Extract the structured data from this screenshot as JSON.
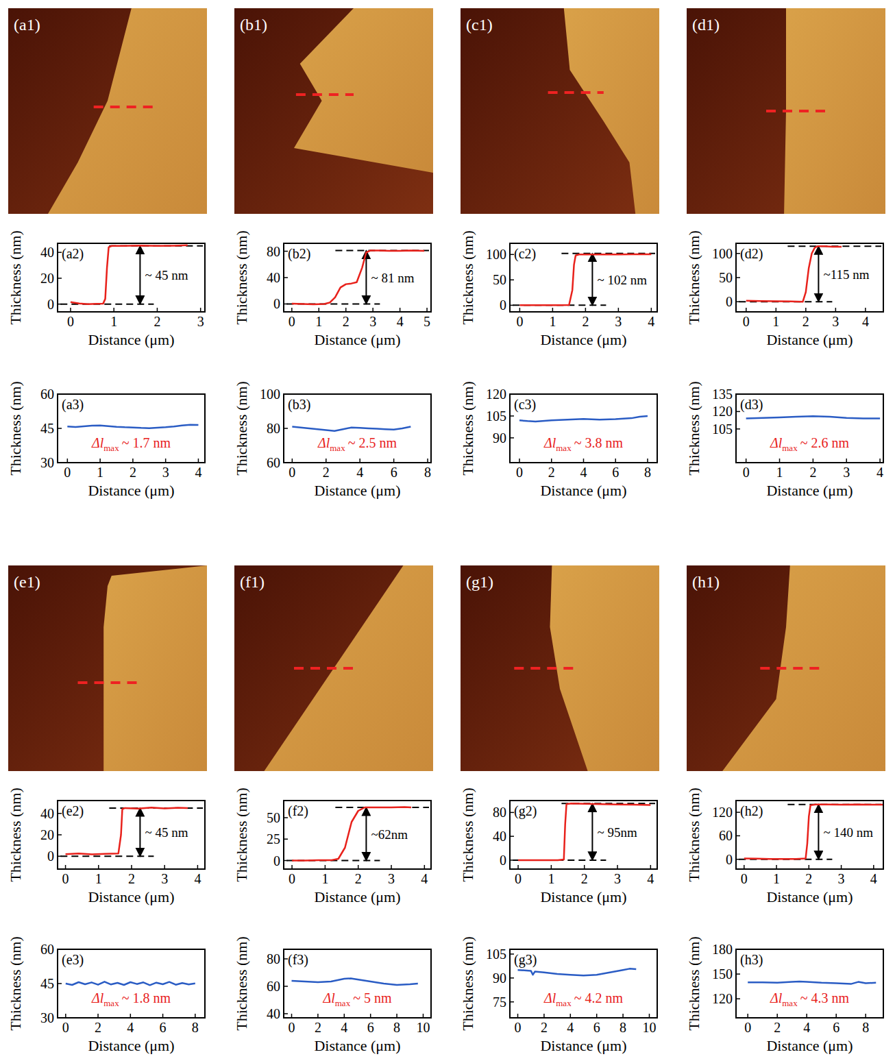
{
  "images": [
    {
      "label": "(a1)"
    },
    {
      "label": "(b1)"
    },
    {
      "label": "(c1)"
    },
    {
      "label": "(d1)"
    },
    {
      "label": "(e1)"
    },
    {
      "label": "(f1)"
    },
    {
      "label": "(g1)"
    },
    {
      "label": "(h1)"
    }
  ],
  "chart_data": [
    {
      "type": "line",
      "title": "(a2)",
      "x_label": "Distance (μm)",
      "y_label": "Thickness (nm)",
      "xlim": [
        -0.3,
        3.1
      ],
      "ylim": [
        -6,
        47
      ],
      "xticks": [
        0,
        1,
        2,
        3
      ],
      "yticks": [
        0,
        20,
        40
      ],
      "x": [
        0,
        0.2,
        0.4,
        0.6,
        0.75,
        0.8,
        0.84,
        0.88,
        0.95,
        1.2,
        1.6,
        2.0,
        2.4,
        2.7
      ],
      "series": [
        {
          "color": "#e8211b",
          "values": [
            1.5,
            0.5,
            0,
            0.2,
            0.3,
            4,
            28,
            44,
            45,
            45,
            45.3,
            45,
            45.2,
            45.5
          ]
        }
      ],
      "step_levels": [
        0,
        45
      ],
      "annotation": "~ 45 nm"
    },
    {
      "type": "line",
      "title": "(a3)",
      "x_label": "Distance (μm)",
      "y_label": "Thickness (nm)",
      "xlim": [
        -0.3,
        4.2
      ],
      "ylim": [
        30,
        60
      ],
      "xticks": [
        0,
        1,
        2,
        3,
        4
      ],
      "yticks": [
        30,
        45,
        60
      ],
      "x": [
        0,
        0.25,
        0.5,
        0.75,
        1,
        1.25,
        1.5,
        1.75,
        2,
        2.25,
        2.5,
        2.75,
        3,
        3.25,
        3.5,
        3.75,
        4
      ],
      "series": [
        {
          "color": "#2a5cc4",
          "values": [
            45.8,
            45.6,
            45.9,
            46.2,
            46.3,
            46,
            45.7,
            45.5,
            45.4,
            45.2,
            45.1,
            45.3,
            45.5,
            45.8,
            46.3,
            46.6,
            46.5
          ]
        }
      ],
      "annotation": {
        "text": "Δl",
        "subscript": "max",
        "suffix": "~ 1.7 nm"
      }
    },
    {
      "type": "line",
      "title": "(b2)",
      "x_label": "Distance (μm)",
      "y_label": "Thickness (nm)",
      "xlim": [
        -0.3,
        5.15
      ],
      "ylim": [
        -12,
        92
      ],
      "xticks": [
        0,
        1,
        2,
        3,
        4,
        5
      ],
      "yticks": [
        0,
        40,
        80
      ],
      "x": [
        0,
        0.4,
        0.8,
        1.2,
        1.4,
        1.6,
        1.8,
        2.0,
        2.2,
        2.4,
        2.6,
        2.75,
        2.9,
        3.2,
        3.6,
        4.0,
        4.4,
        4.9
      ],
      "series": [
        {
          "color": "#e8211b",
          "values": [
            0.5,
            0,
            -0.5,
            0,
            2,
            10,
            25,
            30,
            31,
            33,
            55,
            78,
            81,
            81,
            80.5,
            80.5,
            81,
            80.5
          ]
        }
      ],
      "step_levels": [
        0,
        81
      ],
      "annotation": "~ 81 nm"
    },
    {
      "type": "line",
      "title": "(b3)",
      "x_label": "Distance (μm)",
      "y_label": "Thickness (nm)",
      "xlim": [
        -0.5,
        8.2
      ],
      "ylim": [
        60,
        100
      ],
      "xticks": [
        0,
        2,
        4,
        6,
        8
      ],
      "yticks": [
        60,
        80,
        100
      ],
      "x": [
        0,
        0.5,
        1,
        1.5,
        2,
        2.5,
        3,
        3.5,
        4,
        4.5,
        5,
        5.5,
        6,
        6.5,
        7
      ],
      "series": [
        {
          "color": "#2a5cc4",
          "values": [
            81,
            80.5,
            80,
            79.5,
            79,
            78.5,
            79.5,
            80.5,
            80.3,
            80,
            79.8,
            79.5,
            79.3,
            80,
            81
          ]
        }
      ],
      "annotation": {
        "text": "Δl",
        "subscript": "max",
        "suffix": "~ 2.5 nm"
      }
    },
    {
      "type": "line",
      "title": "(c2)",
      "x_label": "Distance (μm)",
      "y_label": "Thickness (nm)",
      "xlim": [
        -0.3,
        4.18
      ],
      "ylim": [
        -13,
        122
      ],
      "xticks": [
        0,
        1,
        2,
        3,
        4
      ],
      "yticks": [
        0,
        50,
        100
      ],
      "x": [
        0,
        0.4,
        0.8,
        1.2,
        1.5,
        1.6,
        1.65,
        1.7,
        1.8,
        2.2,
        2.6,
        3.0,
        3.4,
        3.8,
        4.0
      ],
      "series": [
        {
          "color": "#e8211b",
          "values": [
            0,
            0,
            0,
            0,
            0.5,
            30,
            80,
            98,
            100,
            100,
            100,
            100,
            100.5,
            100.5,
            100.5
          ]
        }
      ],
      "step_levels": [
        0,
        102
      ],
      "annotation": "~ 102 nm"
    },
    {
      "type": "line",
      "title": "(c3)",
      "x_label": "Distance (μm)",
      "y_label": "Thickness (nm)",
      "xlim": [
        -0.6,
        8.6
      ],
      "ylim": [
        73,
        120
      ],
      "xticks": [
        0,
        2,
        4,
        6,
        8
      ],
      "yticks": [
        90,
        105,
        120
      ],
      "x": [
        0,
        0.5,
        1,
        2,
        3,
        4,
        5,
        6,
        7,
        7.5,
        8
      ],
      "series": [
        {
          "color": "#2a5cc4",
          "values": [
            102,
            101.5,
            101.2,
            102,
            102.5,
            103,
            102.5,
            102.8,
            103.5,
            104.5,
            105
          ]
        }
      ],
      "annotation": {
        "text": "Δl",
        "subscript": "max",
        "suffix": "~ 3.8 nm"
      }
    },
    {
      "type": "line",
      "title": "(d2)",
      "x_label": "Distance (μm)",
      "y_label": "Thickness (nm)",
      "xlim": [
        -0.34,
        4.6
      ],
      "ylim": [
        -21,
        121
      ],
      "xticks": [
        0,
        1,
        2,
        3,
        4
      ],
      "yticks": [
        0,
        50,
        100
      ],
      "x": [
        0,
        0.5,
        1,
        1.5,
        1.9,
        2.0,
        2.1,
        2.2,
        2.3,
        2.4,
        2.6,
        2.9,
        3.2
      ],
      "series": [
        {
          "color": "#e8211b",
          "values": [
            2,
            1.5,
            1,
            0.5,
            0,
            20,
            70,
            100,
            112,
            115,
            115,
            114,
            114
          ]
        }
      ],
      "step_levels": [
        0,
        115
      ],
      "annotation": "~115 nm"
    },
    {
      "type": "line",
      "title": "(d3)",
      "x_label": "Distance (μm)",
      "y_label": "Thickness (nm)",
      "xlim": [
        -0.3,
        4.1
      ],
      "ylim": [
        76,
        135
      ],
      "xticks": [
        0,
        1,
        2,
        3,
        4
      ],
      "yticks": [
        105,
        120,
        135
      ],
      "x": [
        0,
        0.5,
        1,
        1.5,
        2,
        2.5,
        3,
        3.5,
        4
      ],
      "series": [
        {
          "color": "#2a5cc4",
          "values": [
            114,
            114.5,
            115,
            115.5,
            116,
            115.5,
            114.5,
            114,
            114
          ]
        }
      ],
      "annotation": {
        "text": "Δl",
        "subscript": "max",
        "suffix": "~ 2.6 nm"
      }
    },
    {
      "type": "line",
      "title": "(e2)",
      "x_label": "Distance (μm)",
      "y_label": "Thickness (nm)",
      "xlim": [
        -0.24,
        4.22
      ],
      "ylim": [
        -12,
        52
      ],
      "xticks": [
        0,
        1,
        2,
        3,
        4
      ],
      "yticks": [
        0,
        20,
        40
      ],
      "x": [
        0,
        0.4,
        0.8,
        1.2,
        1.6,
        1.68,
        1.72,
        1.8,
        2.2,
        2.6,
        3.0,
        3.4,
        3.7
      ],
      "series": [
        {
          "color": "#e8211b",
          "values": [
            2,
            2.5,
            1.8,
            2.2,
            2.5,
            20,
            44,
            45,
            44.5,
            45.5,
            44.6,
            45.3,
            45
          ]
        }
      ],
      "step_levels": [
        0,
        45
      ],
      "annotation": "~ 45 nm"
    },
    {
      "type": "line",
      "title": "(e3)",
      "x_label": "Distance (μm)",
      "y_label": "Thickness (nm)",
      "xlim": [
        -0.5,
        8.6
      ],
      "ylim": [
        30,
        60
      ],
      "xticks": [
        0,
        2,
        4,
        6,
        8
      ],
      "yticks": [
        30,
        45,
        60
      ],
      "x": [
        0,
        0.4,
        0.8,
        1.2,
        1.6,
        2.0,
        2.4,
        2.8,
        3.2,
        3.6,
        4.0,
        4.4,
        4.8,
        5.2,
        5.6,
        6.0,
        6.4,
        6.8,
        7.2,
        7.6,
        8.0
      ],
      "series": [
        {
          "color": "#2a5cc4",
          "values": [
            45,
            44.4,
            45.6,
            44.7,
            45.5,
            44.5,
            45.8,
            44.6,
            45.3,
            44.4,
            45.6,
            44.8,
            45.5,
            44.3,
            45.4,
            44.7,
            45.7,
            44.5,
            45.2,
            44.6,
            45.1
          ]
        }
      ],
      "annotation": {
        "text": "Δl",
        "subscript": "max",
        "suffix": "~ 1.8 nm"
      }
    },
    {
      "type": "line",
      "title": "(f2)",
      "x_label": "Distance (μm)",
      "y_label": "Thickness (nm)",
      "xlim": [
        -0.25,
        4.2
      ],
      "ylim": [
        -10,
        70
      ],
      "xticks": [
        0,
        1,
        2,
        3,
        4
      ],
      "yticks": [
        0,
        25,
        50
      ],
      "x": [
        0,
        0.4,
        0.8,
        1.2,
        1.4,
        1.6,
        1.8,
        2.0,
        2.2,
        2.6,
        3.0,
        3.4,
        3.6
      ],
      "series": [
        {
          "color": "#e8211b",
          "values": [
            0,
            0,
            0.5,
            0.5,
            2,
            15,
            45,
            58,
            62,
            62,
            62,
            62.5,
            62
          ]
        }
      ],
      "step_levels": [
        0,
        62
      ],
      "annotation": "~62nm"
    },
    {
      "type": "line",
      "title": "(f3)",
      "x_label": "Distance (μm)",
      "y_label": "Thickness (nm)",
      "xlim": [
        -0.6,
        10.6
      ],
      "ylim": [
        37,
        87
      ],
      "xticks": [
        0,
        2,
        4,
        6,
        8,
        10
      ],
      "yticks": [
        40,
        60,
        80
      ],
      "x": [
        0,
        1,
        2,
        3,
        4,
        4.5,
        5,
        6,
        7,
        8,
        9,
        9.6
      ],
      "series": [
        {
          "color": "#2a5cc4",
          "values": [
            64,
            63.5,
            63,
            63.5,
            65.5,
            65.8,
            65,
            63.5,
            62,
            61,
            61.5,
            62
          ]
        }
      ],
      "annotation": {
        "text": "Δl",
        "subscript": "max",
        "suffix": "~ 5 nm"
      }
    },
    {
      "type": "line",
      "title": "(g2)",
      "x_label": "Distance (μm)",
      "y_label": "Thickness (nm)",
      "xlim": [
        -0.25,
        4.2
      ],
      "ylim": [
        -15,
        100
      ],
      "xticks": [
        0,
        1,
        2,
        3,
        4
      ],
      "yticks": [
        0,
        40,
        80
      ],
      "x": [
        0,
        0.4,
        0.8,
        1.2,
        1.38,
        1.42,
        1.46,
        1.6,
        2.0,
        2.5,
        3.0,
        3.5,
        4.0
      ],
      "series": [
        {
          "color": "#e8211b",
          "values": [
            0,
            0,
            0,
            0,
            1,
            60,
            94,
            95,
            94.5,
            94,
            93.5,
            93,
            92.5
          ]
        }
      ],
      "step_levels": [
        0,
        95
      ],
      "annotation": "~ 95nm"
    },
    {
      "type": "line",
      "title": "(g3)",
      "x_label": "Distance (μm)",
      "y_label": "Thickness (nm)",
      "xlim": [
        -0.6,
        10.6
      ],
      "ylim": [
        65,
        108
      ],
      "xticks": [
        0,
        2,
        4,
        6,
        8,
        10
      ],
      "yticks": [
        75,
        90,
        105
      ],
      "x": [
        0,
        0.5,
        1,
        1.15,
        1.3,
        2,
        3,
        4,
        5,
        6,
        7,
        8,
        8.5,
        9
      ],
      "series": [
        {
          "color": "#2a5cc4",
          "values": [
            95,
            94.8,
            94.5,
            92,
            94,
            93.5,
            92.5,
            92,
            91.5,
            92,
            93.5,
            95,
            95.8,
            95.5
          ]
        }
      ],
      "annotation": {
        "text": "Δl",
        "subscript": "max",
        "suffix": "~ 4.2 nm"
      }
    },
    {
      "type": "line",
      "title": "(h2)",
      "x_label": "Distance (μm)",
      "y_label": "Thickness (nm)",
      "xlim": [
        -0.25,
        4.3
      ],
      "ylim": [
        -25,
        150
      ],
      "xticks": [
        0,
        1,
        2,
        3,
        4
      ],
      "yticks": [
        0,
        60,
        120
      ],
      "x": [
        0,
        0.4,
        0.8,
        1.2,
        1.6,
        1.9,
        1.95,
        2.0,
        2.05,
        2.2,
        2.6,
        3.0,
        3.5,
        4.0,
        4.3
      ],
      "series": [
        {
          "color": "#e8211b",
          "values": [
            2,
            1.5,
            1,
            1,
            1,
            2,
            40,
            110,
            138,
            140,
            140,
            139.5,
            140,
            139.5,
            139.5
          ]
        }
      ],
      "step_levels": [
        0,
        140
      ],
      "annotation": "~ 140 nm"
    },
    {
      "type": "line",
      "title": "(h3)",
      "x_label": "Distance (μm)",
      "y_label": "Thickness (nm)",
      "xlim": [
        -0.8,
        9.2
      ],
      "ylim": [
        97,
        180
      ],
      "xticks": [
        0,
        2,
        4,
        6,
        8
      ],
      "yticks": [
        120,
        150,
        180
      ],
      "x": [
        0,
        1,
        2,
        3,
        3.5,
        4,
        5,
        6,
        6.5,
        7,
        7.5,
        8,
        8.7
      ],
      "series": [
        {
          "color": "#2a5cc4",
          "values": [
            140,
            140,
            139.5,
            140.5,
            141,
            140.5,
            139.5,
            139,
            138.5,
            138,
            140.5,
            139,
            139.5
          ]
        }
      ],
      "annotation": {
        "text": "Δl",
        "subscript": "max",
        "suffix": "~ 4.3 nm"
      }
    }
  ]
}
